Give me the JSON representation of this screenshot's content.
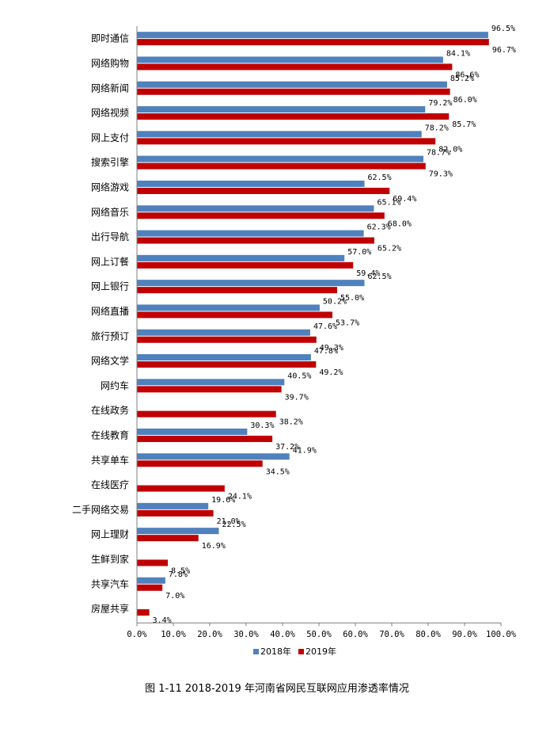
{
  "chart_data": {
    "type": "bar",
    "orientation": "horizontal",
    "categories": [
      "即时通信",
      "网络购物",
      "网络新闻",
      "网络视频",
      "网上支付",
      "搜索引擎",
      "网络游戏",
      "网络音乐",
      "出行导航",
      "网上订餐",
      "网上银行",
      "网络直播",
      "旅行预订",
      "网络文学",
      "网约车",
      "在线政务",
      "在线教育",
      "共享单车",
      "在线医疗",
      "二手网络交易",
      "网上理财",
      "生鲜到家",
      "共享汽车",
      "房屋共享"
    ],
    "series": [
      {
        "name": "2018年",
        "color": "#4F81BD",
        "values": [
          96.5,
          84.1,
          85.2,
          79.2,
          78.2,
          78.7,
          62.5,
          65.1,
          62.3,
          57.0,
          62.5,
          50.2,
          47.6,
          47.8,
          40.5,
          null,
          30.3,
          41.9,
          null,
          19.6,
          22.5,
          null,
          7.8,
          null
        ]
      },
      {
        "name": "2019年",
        "color": "#C00000",
        "values": [
          96.7,
          86.6,
          86.0,
          85.7,
          82.0,
          79.3,
          69.4,
          68.0,
          65.2,
          59.4,
          55.0,
          53.7,
          49.3,
          49.2,
          39.7,
          38.2,
          37.2,
          34.5,
          24.1,
          21.0,
          16.9,
          8.5,
          7.0,
          3.4
        ]
      }
    ],
    "xlim": [
      0,
      100
    ],
    "xticks": [
      "0.0%",
      "10.0%",
      "20.0%",
      "30.0%",
      "40.0%",
      "50.0%",
      "60.0%",
      "70.0%",
      "80.0%",
      "90.0%",
      "100.0%"
    ],
    "grid": false,
    "legend": "bottom",
    "title": ""
  },
  "caption": "图 1-11    2018-2019 年河南省网民互联网应用渗透率情况"
}
